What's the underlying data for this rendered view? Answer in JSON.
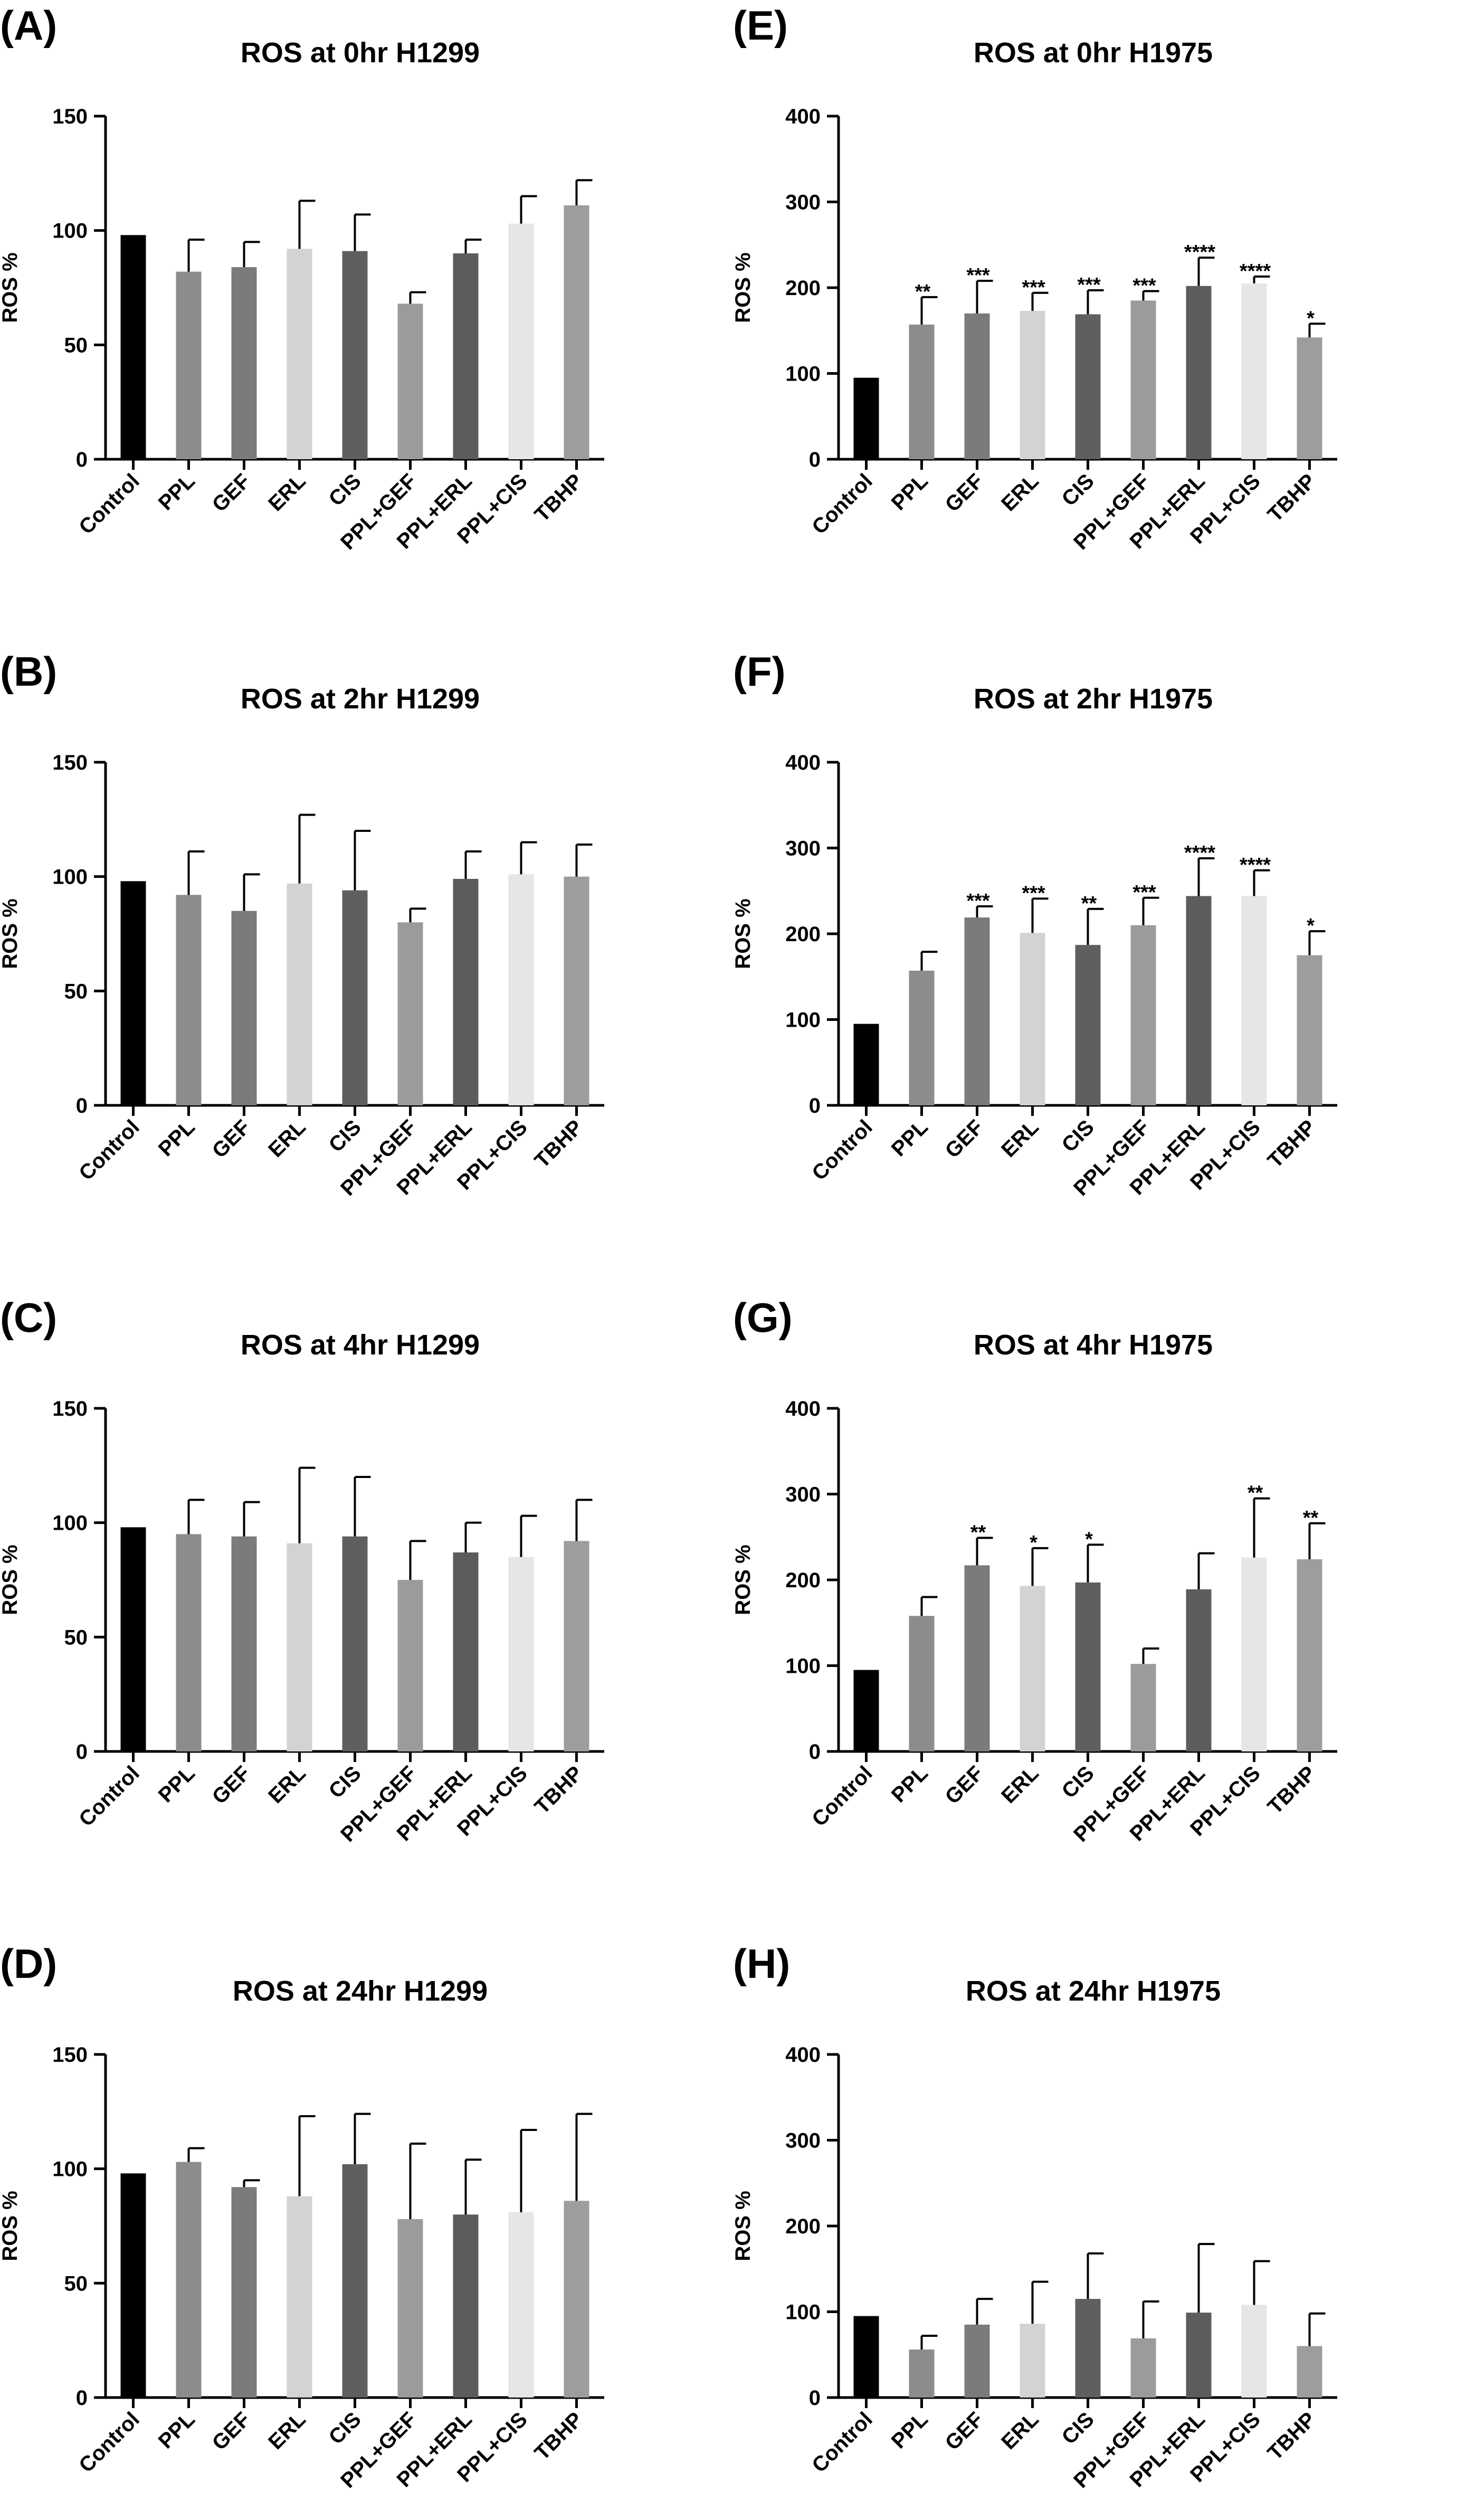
{
  "colors": {
    "Control": "#000000",
    "PPL": "#8c8c8c",
    "GEF": "#7b7b7b",
    "ERL": "#d3d3d3",
    "CIS": "#5f5f5f",
    "PPL+GEF": "#9b9b9b",
    "PPL+ERL": "#5c5c5c",
    "PPL+CIS": "#e6e6e6",
    "TBHP": "#9d9d9d"
  },
  "chart_data": [
    {
      "type": "bar",
      "letter": "(A)",
      "title": "ROS at 0hr H1299",
      "ylabel": "ROS %",
      "ylim": [
        0,
        150
      ],
      "yticks": [
        "0",
        "50",
        "100",
        "150"
      ],
      "categories": [
        "Control",
        "PPL",
        "GEF",
        "ERL",
        "CIS",
        "PPL+GEF",
        "PPL+ERL",
        "PPL+CIS",
        "TBHP"
      ],
      "values": [
        98,
        82,
        84,
        92,
        91,
        68,
        90,
        103,
        111
      ],
      "errors": [
        0,
        14,
        11,
        21,
        16,
        5,
        6,
        12,
        11
      ],
      "significance": [
        "",
        "",
        "",
        "",
        "",
        "",
        "",
        "",
        ""
      ]
    },
    {
      "type": "bar",
      "letter": "(B)",
      "title": "ROS at 2hr H1299",
      "ylabel": "ROS %",
      "ylim": [
        0,
        150
      ],
      "yticks": [
        "0",
        "50",
        "100",
        "150"
      ],
      "categories": [
        "Control",
        "PPL",
        "GEF",
        "ERL",
        "CIS",
        "PPL+GEF",
        "PPL+ERL",
        "PPL+CIS",
        "TBHP"
      ],
      "values": [
        98,
        92,
        85,
        97,
        94,
        80,
        99,
        101,
        100
      ],
      "errors": [
        0,
        19,
        16,
        30,
        26,
        6,
        12,
        14,
        14
      ],
      "significance": [
        "",
        "",
        "",
        "",
        "",
        "",
        "",
        "",
        ""
      ]
    },
    {
      "type": "bar",
      "letter": "(C)",
      "title": "ROS at 4hr H1299",
      "ylabel": "ROS %",
      "ylim": [
        0,
        150
      ],
      "yticks": [
        "0",
        "50",
        "100",
        "150"
      ],
      "categories": [
        "Control",
        "PPL",
        "GEF",
        "ERL",
        "CIS",
        "PPL+GEF",
        "PPL+ERL",
        "PPL+CIS",
        "TBHP"
      ],
      "values": [
        98,
        95,
        94,
        91,
        94,
        75,
        87,
        85,
        92
      ],
      "errors": [
        0,
        15,
        15,
        33,
        26,
        17,
        13,
        18,
        18
      ],
      "significance": [
        "",
        "",
        "",
        "",
        "",
        "",
        "",
        "",
        ""
      ]
    },
    {
      "type": "bar",
      "letter": "(D)",
      "title": "ROS at 24hr H1299",
      "ylabel": "ROS %",
      "ylim": [
        0,
        150
      ],
      "yticks": [
        "0",
        "50",
        "100",
        "150"
      ],
      "categories": [
        "Control",
        "PPL",
        "GEF",
        "ERL",
        "CIS",
        "PPL+GEF",
        "PPL+ERL",
        "PPL+CIS",
        "TBHP"
      ],
      "values": [
        98,
        103,
        92,
        88,
        102,
        78,
        80,
        81,
        86
      ],
      "errors": [
        0,
        6,
        3,
        35,
        22,
        33,
        24,
        36,
        38
      ],
      "significance": [
        "",
        "",
        "",
        "",
        "",
        "",
        "",
        "",
        ""
      ]
    },
    {
      "type": "bar",
      "letter": "(E)",
      "title": "ROS at 0hr H1975",
      "ylabel": "ROS %",
      "ylim": [
        0,
        400
      ],
      "yticks": [
        "0",
        "100",
        "200",
        "300",
        "400"
      ],
      "categories": [
        "Control",
        "PPL",
        "GEF",
        "ERL",
        "CIS",
        "PPL+GEF",
        "PPL+ERL",
        "PPL+CIS",
        "TBHP"
      ],
      "values": [
        95,
        157,
        170,
        173,
        169,
        185,
        202,
        205,
        142
      ],
      "errors": [
        0,
        32,
        38,
        21,
        28,
        11,
        33,
        8,
        16
      ],
      "significance": [
        "",
        "**",
        "***",
        "***",
        "***",
        "***",
        "****",
        "****",
        "*"
      ]
    },
    {
      "type": "bar",
      "letter": "(F)",
      "title": "ROS at 2hr H1975",
      "ylabel": "ROS %",
      "ylim": [
        0,
        400
      ],
      "yticks": [
        "0",
        "100",
        "200",
        "300",
        "400"
      ],
      "categories": [
        "Control",
        "PPL",
        "GEF",
        "ERL",
        "CIS",
        "PPL+GEF",
        "PPL+ERL",
        "PPL+CIS",
        "TBHP"
      ],
      "values": [
        95,
        157,
        219,
        201,
        187,
        210,
        244,
        244,
        175
      ],
      "errors": [
        0,
        22,
        13,
        40,
        42,
        32,
        44,
        30,
        28
      ],
      "significance": [
        "",
        "",
        "***",
        "***",
        "**",
        "***",
        "****",
        "****",
        "*"
      ]
    },
    {
      "type": "bar",
      "letter": "(G)",
      "title": "ROS at 4hr H1975",
      "ylabel": "ROS %",
      "ylim": [
        0,
        400
      ],
      "yticks": [
        "0",
        "100",
        "200",
        "300",
        "400"
      ],
      "categories": [
        "Control",
        "PPL",
        "GEF",
        "ERL",
        "CIS",
        "PPL+GEF",
        "PPL+ERL",
        "PPL+CIS",
        "TBHP"
      ],
      "values": [
        95,
        158,
        217,
        193,
        197,
        102,
        189,
        226,
        224
      ],
      "errors": [
        0,
        22,
        32,
        44,
        44,
        18,
        42,
        69,
        42
      ],
      "significance": [
        "",
        "",
        "**",
        "*",
        "*",
        "",
        "",
        "**",
        "**"
      ]
    },
    {
      "type": "bar",
      "letter": "(H)",
      "title": "ROS at 24hr H1975",
      "ylabel": "ROS %",
      "ylim": [
        0,
        400
      ],
      "yticks": [
        "0",
        "100",
        "200",
        "300",
        "400"
      ],
      "categories": [
        "Control",
        "PPL",
        "GEF",
        "ERL",
        "CIS",
        "PPL+GEF",
        "PPL+ERL",
        "PPL+CIS",
        "TBHP"
      ],
      "values": [
        95,
        56,
        85,
        86,
        115,
        69,
        99,
        108,
        60
      ],
      "errors": [
        0,
        16,
        30,
        49,
        53,
        43,
        80,
        51,
        38
      ],
      "significance": [
        "",
        "",
        "",
        "",
        "",
        "",
        "",
        "",
        ""
      ]
    }
  ]
}
